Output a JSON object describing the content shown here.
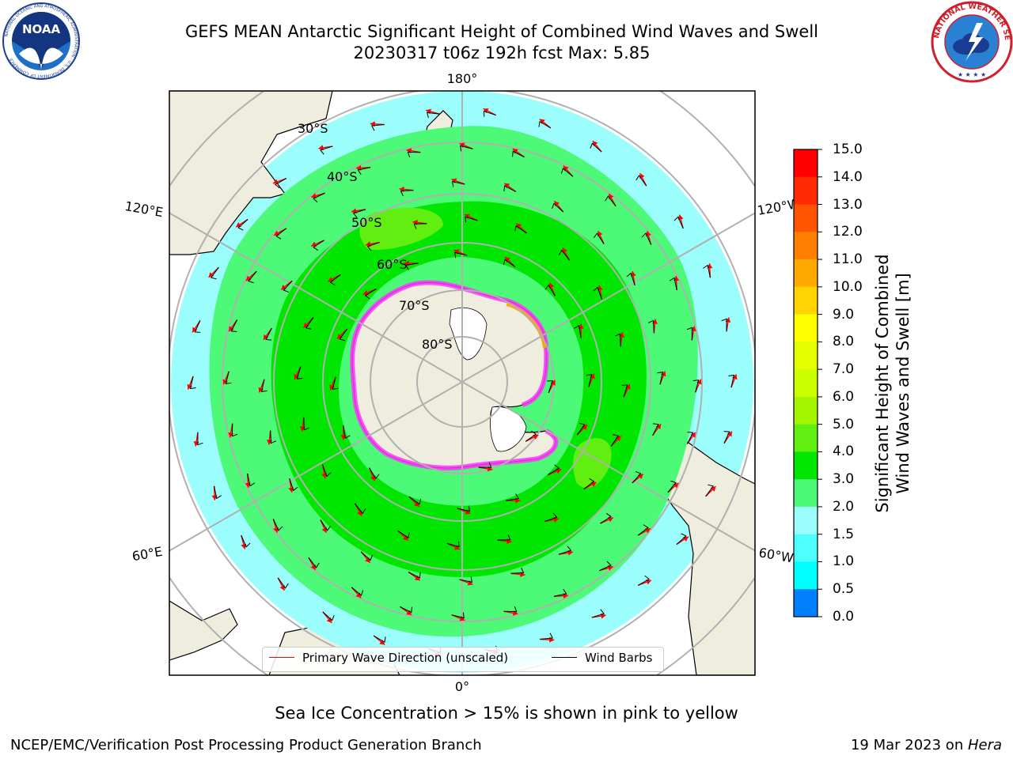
{
  "title": {
    "line1": "GEFS MEAN Antarctic Significant Height of Combined Wind Waves and Swell",
    "line2": "20230317 t06z 192h fcst   Max: 5.85"
  },
  "logos": {
    "noaa": {
      "text": "NOAA",
      "ring_text": "NATIONAL OCEANIC AND ATMOSPHERIC ADMINISTRATION · U.S. DEPARTMENT OF COMMERCE"
    },
    "nws": {
      "ring_text": "NATIONAL WEATHER SERVICE"
    }
  },
  "map": {
    "projection": "south-polar-stereographic",
    "longitude_labels": {
      "top": "180°",
      "bottom": "0°",
      "left_upper": "120°E",
      "right_upper": "120°W",
      "left_lower": "60°E",
      "right_lower": "60°W"
    },
    "latitude_labels": [
      "30°S",
      "40°S",
      "50°S",
      "60°S",
      "70°S",
      "80°S"
    ],
    "latitude_circles": [
      30,
      40,
      50,
      60,
      70,
      80
    ],
    "colors": {
      "land": "#efeddd",
      "antarctica": "#efeddd",
      "ocean_low": "#9bfdfc",
      "band_3_4": "#4cfa78",
      "band_4_5": "#00e600",
      "band_5_6": "#60ef10",
      "sea_ice_edge": "#ff33ff",
      "wave_arrow": "#ff0000",
      "wind_barb": "#000000",
      "grid": "#b0b0b0"
    }
  },
  "colorbar": {
    "ticks": [
      "15.0",
      "14.0",
      "13.0",
      "12.0",
      "11.0",
      "10.0",
      "9.0",
      "8.0",
      "7.0",
      "6.0",
      "5.0",
      "4.0",
      "3.0",
      "2.0",
      "1.5",
      "1.0",
      "0.5",
      "0.0"
    ],
    "colors": [
      "#ff0000",
      "#ff2a00",
      "#ff5500",
      "#ff8000",
      "#ffaa00",
      "#ffd400",
      "#ffff00",
      "#e6ff00",
      "#ccff00",
      "#a6f500",
      "#60ef10",
      "#00e600",
      "#4cfa78",
      "#9bfdfc",
      "#4dfefe",
      "#00ffff",
      "#0080ff",
      "#0000ff"
    ],
    "title_line1": "Significant Height of Combined",
    "title_line2": "Wind Waves and Swell [m]"
  },
  "legend": {
    "wave": "Primary Wave Direction (unscaled)",
    "wind": "Wind Barbs"
  },
  "caption": "Sea Ice Concentration > 15% is shown in pink to yellow",
  "footer": {
    "credit": "NCEP/EMC/Verification Post Processing Product Generation Branch",
    "stamp_prefix": "19 Mar 2023 on ",
    "stamp_machine": "Hera"
  }
}
